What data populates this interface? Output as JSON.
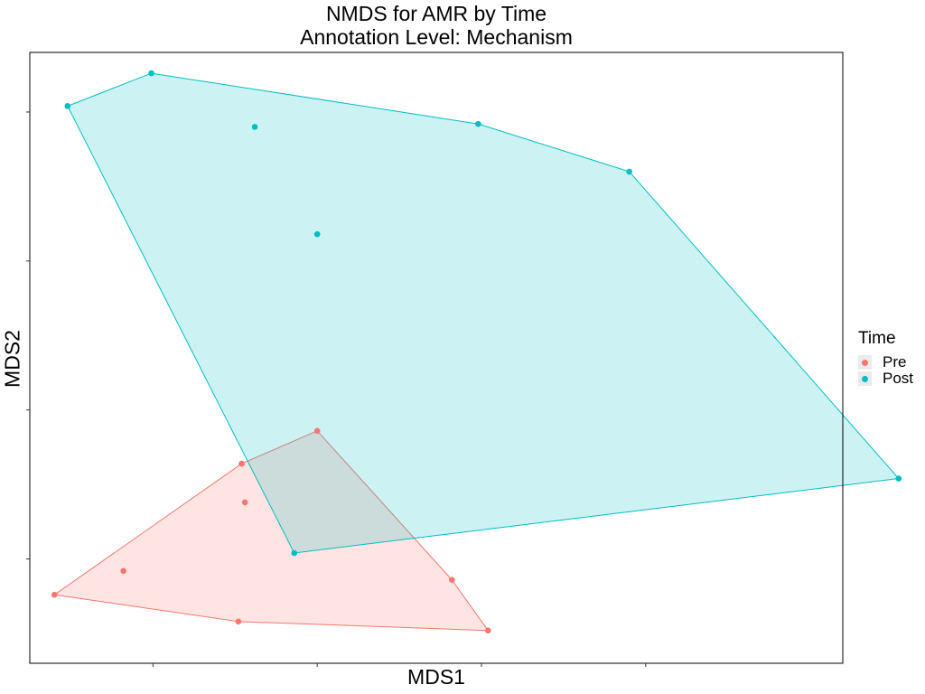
{
  "chart": {
    "title_line1": "NMDS for AMR by Time",
    "title_line2": "Annotation Level: Mechanism",
    "xlabel": "MDS1",
    "ylabel": "MDS2"
  },
  "legend": {
    "title": "Time",
    "items": [
      {
        "label": "Pre",
        "color": "#F8766D"
      },
      {
        "label": "Post",
        "color": "#00BFC4"
      }
    ]
  },
  "chart_data": {
    "type": "scatter",
    "title": "NMDS for AMR by Time\nAnnotation Level: Mechanism",
    "xlabel": "MDS1",
    "ylabel": "MDS2",
    "xlim": [
      -0.375,
      2.1
    ],
    "ylim": [
      -1.1,
      0.95
    ],
    "xticks": [
      0,
      0.5,
      1,
      1.5
    ],
    "yticks": [
      -0.75,
      -0.25,
      0.25,
      0.75
    ],
    "tick_labels_shown": false,
    "grid": false,
    "legend_position": "right",
    "hull": true,
    "series": [
      {
        "name": "Pre",
        "color": "#F8766D",
        "points": [
          {
            "x": -0.3,
            "y": -0.87
          },
          {
            "x": -0.09,
            "y": -0.79
          },
          {
            "x": 0.26,
            "y": -0.96
          },
          {
            "x": 0.27,
            "y": -0.43
          },
          {
            "x": 0.28,
            "y": -0.56
          },
          {
            "x": 0.5,
            "y": -0.32
          },
          {
            "x": 0.91,
            "y": -0.82
          },
          {
            "x": 1.02,
            "y": -0.99
          }
        ]
      },
      {
        "name": "Post",
        "color": "#00BFC4",
        "points": [
          {
            "x": -0.26,
            "y": 0.77
          },
          {
            "x": -0.005,
            "y": 0.88
          },
          {
            "x": 0.31,
            "y": 0.7
          },
          {
            "x": 0.5,
            "y": 0.34
          },
          {
            "x": 0.43,
            "y": -0.73
          },
          {
            "x": 0.99,
            "y": 0.71
          },
          {
            "x": 1.45,
            "y": 0.55
          },
          {
            "x": 2.27,
            "y": -0.48
          }
        ]
      }
    ]
  }
}
